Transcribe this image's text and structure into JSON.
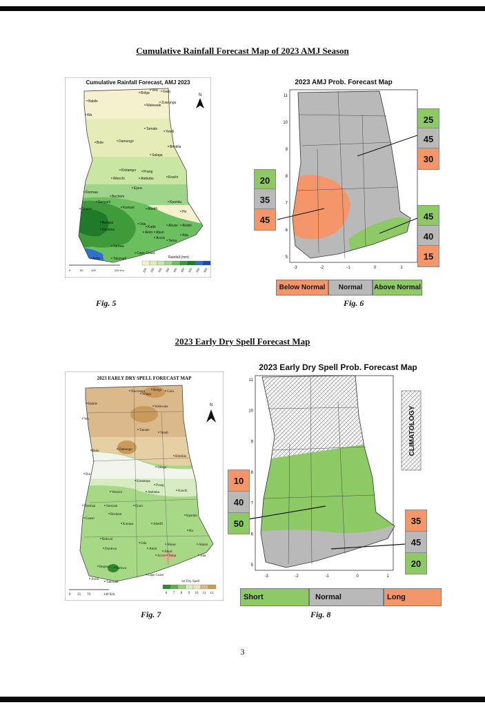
{
  "section1": {
    "heading": "Cumulative Rainfall Forecast Map of 2023 AMJ Season",
    "fig5": {
      "caption": "Fig. 5",
      "title": "Cumulative Rainfall Forecast, AMJ 2023",
      "north": "N",
      "legend_title": "Rainfall (mm)",
      "legend_values": [
        "200",
        "250",
        "300",
        "350",
        "400",
        "450",
        "500",
        "550",
        "600"
      ],
      "legend_colors": [
        "#f5f1cf",
        "#e6ecb8",
        "#c9e6a2",
        "#9fd58a",
        "#6cbf5f",
        "#3f9b3a",
        "#1f7a2a",
        "#2f6fcf",
        "#1a4aa8"
      ],
      "scalebar": [
        "0",
        "50",
        "100",
        "200 Km"
      ],
      "towns": [
        "Bolga",
        "Vea",
        "Garu",
        "Babile",
        "Zuarungu",
        "Walewale",
        "Wa",
        "Tamale",
        "Yendi",
        "Bole",
        "Damongo",
        "Bimbila",
        "Salaga",
        "Kintampo",
        "Prang",
        "Wenchi",
        "Atebubu",
        "Krachi",
        "Ejura",
        "Dormaa",
        "Bechem",
        "Sunyani",
        "Kpandu",
        "Goaso",
        "Kumasi",
        "Abetifi",
        "Ho",
        "Bekwai",
        "Oda",
        "Akuse",
        "Akatsi",
        "Dunkwa",
        "Kade",
        "Akim",
        "Aburi",
        "Accra",
        "Tema",
        "Ada",
        "Tarkwa",
        "Cape Coast",
        "Axim",
        "Takoradi"
      ]
    },
    "fig6": {
      "caption": "Fig. 6",
      "title": "2023 AMJ Prob. Forecast Map",
      "y_ticks": [
        "11",
        "10",
        "9",
        "8",
        "7",
        "6",
        "5"
      ],
      "x_ticks": [
        "-3",
        "-2",
        "-1",
        "0",
        "1"
      ],
      "north_region": [
        "25",
        "45",
        "30"
      ],
      "west_region": [
        "20",
        "35",
        "45"
      ],
      "coast_region": [
        "45",
        "40",
        "15"
      ],
      "legend": [
        "Below Normal",
        "Normal",
        "Above Normal"
      ],
      "colors": {
        "below": "#f5956a",
        "normal": "#b9b9b9",
        "above": "#8dca65"
      }
    }
  },
  "section2": {
    "heading": "2023 Early Dry Spell Forecast Map",
    "fig7": {
      "caption": "Fig. 7",
      "title": "2023 EARLY DRY SPELL FORECAST MAP",
      "north": "N",
      "legend_title": "1st Dry Spell",
      "legend_values": [
        "6",
        "7",
        "8",
        "9",
        "10",
        "11",
        "12"
      ],
      "legend_colors": [
        "#2f8a2f",
        "#5fb04a",
        "#9ed27e",
        "#d8ecc3",
        "#f2e3c0",
        "#dcb98a",
        "#c99a5a"
      ],
      "scalebar": [
        "0",
        "35",
        "70",
        "140 Km"
      ],
      "towns": [
        "Navrongo",
        "Bolga",
        "Garu",
        "Wiaga",
        "Babile",
        "Walewale",
        "Wa",
        "Tamale",
        "Yendi",
        "Bole",
        "Damongo",
        "Bimbila",
        "Salaga",
        "Bui",
        "Kintampo",
        "Prang",
        "Wenchi",
        "Atebubu",
        "Krachi",
        "Dormaa",
        "Sunyani",
        "Ejura",
        "Goaso",
        "Bechem",
        "Kpandu",
        "Kumasi",
        "Abetifi",
        "Ho",
        "Bekwai",
        "Oda",
        "Akuse",
        "Akatsi",
        "Dunkwa",
        "Akim",
        "Aburi",
        "Ada",
        "Accra",
        "Tema",
        "Begoso",
        "Tarkwa",
        "Axim",
        "Takoradi",
        "Cape Coast"
      ]
    },
    "fig8": {
      "caption": "Fig. 8",
      "title": "2023 Early Dry Spell Prob. Forecast Map",
      "climatology": "CLIMATOLOGY",
      "y_ticks": [
        "11",
        "10",
        "9",
        "8",
        "7",
        "6",
        "5"
      ],
      "x_ticks": [
        "-3",
        "-2",
        "-1",
        "0",
        "1"
      ],
      "middle_region": [
        "10",
        "40",
        "50"
      ],
      "coast_region": [
        "35",
        "45",
        "20"
      ],
      "legend": [
        "Short",
        "Normal",
        "Long"
      ],
      "colors": {
        "short": "#8dca65",
        "normal": "#b9b9b9",
        "long": "#f5956a"
      }
    }
  },
  "page_number": "3"
}
